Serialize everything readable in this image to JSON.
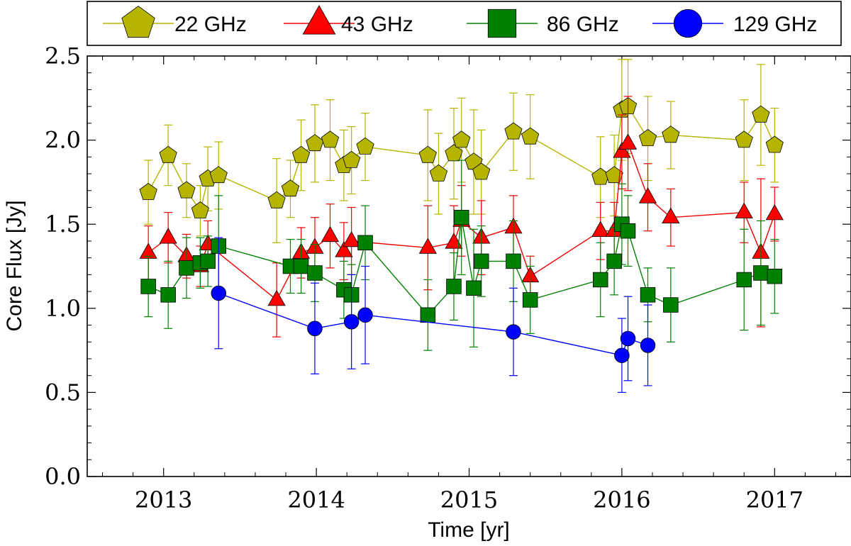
{
  "chart_data": {
    "type": "scatter",
    "xlabel": "Time [yr]",
    "ylabel": "Core Flux [Jy]",
    "xlim": [
      2012.5,
      2017.5
    ],
    "ylim": [
      0.0,
      2.5
    ],
    "xticks": [
      {
        "value": 2013,
        "label": "2013"
      },
      {
        "value": 2014,
        "label": "2014"
      },
      {
        "value": 2015,
        "label": "2015"
      },
      {
        "value": 2016,
        "label": "2016"
      },
      {
        "value": 2017,
        "label": "2017"
      }
    ],
    "yticks": [
      {
        "value": 0.0,
        "label": "0.0"
      },
      {
        "value": 0.5,
        "label": "0.5"
      },
      {
        "value": 1.0,
        "label": "1.0"
      },
      {
        "value": 1.5,
        "label": "1.5"
      },
      {
        "value": 2.0,
        "label": "2.0"
      },
      {
        "value": 2.5,
        "label": "2.5"
      }
    ],
    "legend_position": "top, above plot",
    "series": [
      {
        "name": "22 GHz",
        "marker": "pentagon",
        "line_color": "#b5b500",
        "marker_color": "#b5b500",
        "points": [
          {
            "x": 2012.9,
            "y": 1.69,
            "err": 0.19
          },
          {
            "x": 2013.03,
            "y": 1.91,
            "err": 0.18
          },
          {
            "x": 2013.15,
            "y": 1.7,
            "err": 0.16
          },
          {
            "x": 2013.24,
            "y": 1.58,
            "err": 0.15
          },
          {
            "x": 2013.29,
            "y": 1.77,
            "err": 0.19
          },
          {
            "x": 2013.36,
            "y": 1.79,
            "err": 0.2
          },
          {
            "x": 2013.74,
            "y": 1.64,
            "err": 0.25
          },
          {
            "x": 2013.83,
            "y": 1.71,
            "err": 0.17
          },
          {
            "x": 2013.9,
            "y": 1.91,
            "err": 0.21
          },
          {
            "x": 2013.99,
            "y": 1.98,
            "err": 0.23
          },
          {
            "x": 2014.09,
            "y": 2.0,
            "err": 0.24
          },
          {
            "x": 2014.18,
            "y": 1.85,
            "err": 0.21
          },
          {
            "x": 2014.23,
            "y": 1.88,
            "err": 0.2
          },
          {
            "x": 2014.32,
            "y": 1.96,
            "err": 0.2
          },
          {
            "x": 2014.73,
            "y": 1.91,
            "err": 0.27
          },
          {
            "x": 2014.8,
            "y": 1.8,
            "err": 0.24
          },
          {
            "x": 2014.9,
            "y": 1.92,
            "err": 0.27
          },
          {
            "x": 2014.95,
            "y": 2.0,
            "err": 0.25
          },
          {
            "x": 2015.03,
            "y": 1.87,
            "err": 0.31
          },
          {
            "x": 2015.08,
            "y": 1.81,
            "err": 0.25
          },
          {
            "x": 2015.29,
            "y": 2.05,
            "err": 0.23
          },
          {
            "x": 2015.4,
            "y": 2.02,
            "err": 0.25
          },
          {
            "x": 2015.86,
            "y": 1.78,
            "err": 0.24
          },
          {
            "x": 2015.95,
            "y": 1.79,
            "err": 0.24
          },
          {
            "x": 2016.0,
            "y": 2.18,
            "err": 0.3
          },
          {
            "x": 2016.04,
            "y": 2.2,
            "err": 0.28
          },
          {
            "x": 2016.17,
            "y": 2.01,
            "err": 0.25
          },
          {
            "x": 2016.32,
            "y": 2.03,
            "err": 0.2
          },
          {
            "x": 2016.8,
            "y": 2.0,
            "err": 0.24
          },
          {
            "x": 2016.91,
            "y": 2.15,
            "err": 0.3
          },
          {
            "x": 2017.0,
            "y": 1.97,
            "err": 0.22
          }
        ]
      },
      {
        "name": "43 GHz",
        "marker": "triangle",
        "line_color": "#ee0000",
        "marker_color": "#ff0000",
        "points": [
          {
            "x": 2012.9,
            "y": 1.33,
            "err": 0.16
          },
          {
            "x": 2013.03,
            "y": 1.42,
            "err": 0.15
          },
          {
            "x": 2013.15,
            "y": 1.31,
            "err": 0.13
          },
          {
            "x": 2013.24,
            "y": 1.25,
            "err": 0.12
          },
          {
            "x": 2013.29,
            "y": 1.38,
            "err": 0.14
          },
          {
            "x": 2013.74,
            "y": 1.05,
            "err": 0.22
          },
          {
            "x": 2013.9,
            "y": 1.33,
            "err": 0.15
          },
          {
            "x": 2013.99,
            "y": 1.36,
            "err": 0.18
          },
          {
            "x": 2014.09,
            "y": 1.43,
            "err": 0.19
          },
          {
            "x": 2014.18,
            "y": 1.34,
            "err": 0.17
          },
          {
            "x": 2014.23,
            "y": 1.4,
            "err": 0.2
          },
          {
            "x": 2014.73,
            "y": 1.36,
            "err": 0.25
          },
          {
            "x": 2014.9,
            "y": 1.39,
            "err": 0.22
          },
          {
            "x": 2014.95,
            "y": 1.52,
            "err": 0.21
          },
          {
            "x": 2015.08,
            "y": 1.42,
            "err": 0.22
          },
          {
            "x": 2015.29,
            "y": 1.48,
            "err": 0.19
          },
          {
            "x": 2015.4,
            "y": 1.19,
            "err": 0.12
          },
          {
            "x": 2015.86,
            "y": 1.46,
            "err": 0.17
          },
          {
            "x": 2015.95,
            "y": 1.46,
            "err": 0.17
          },
          {
            "x": 2016.0,
            "y": 1.93,
            "err": 0.22
          },
          {
            "x": 2016.04,
            "y": 1.98,
            "err": 0.28
          },
          {
            "x": 2016.17,
            "y": 1.66,
            "err": 0.2
          },
          {
            "x": 2016.32,
            "y": 1.54,
            "err": 0.17
          },
          {
            "x": 2016.8,
            "y": 1.57,
            "err": 0.18
          },
          {
            "x": 2016.91,
            "y": 1.33,
            "err": 0.44
          },
          {
            "x": 2017.0,
            "y": 1.56,
            "err": 0.16
          }
        ]
      },
      {
        "name": "86 GHz",
        "marker": "square",
        "line_color": "#008000",
        "marker_color": "#008000",
        "points": [
          {
            "x": 2012.9,
            "y": 1.13,
            "err": 0.18
          },
          {
            "x": 2013.03,
            "y": 1.08,
            "err": 0.2
          },
          {
            "x": 2013.15,
            "y": 1.24,
            "err": 0.18
          },
          {
            "x": 2013.24,
            "y": 1.27,
            "err": 0.15
          },
          {
            "x": 2013.29,
            "y": 1.28,
            "err": 0.15
          },
          {
            "x": 2013.36,
            "y": 1.37,
            "err": 0.3
          },
          {
            "x": 2013.83,
            "y": 1.25,
            "err": 0.16
          },
          {
            "x": 2013.9,
            "y": 1.25,
            "err": 0.16
          },
          {
            "x": 2013.99,
            "y": 1.21,
            "err": 0.17
          },
          {
            "x": 2014.18,
            "y": 1.11,
            "err": 0.17
          },
          {
            "x": 2014.23,
            "y": 1.08,
            "err": 0.18
          },
          {
            "x": 2014.32,
            "y": 1.39,
            "err": 0.22
          },
          {
            "x": 2014.73,
            "y": 0.96,
            "err": 0.21
          },
          {
            "x": 2014.9,
            "y": 1.13,
            "err": 0.2
          },
          {
            "x": 2014.95,
            "y": 1.54,
            "err": 0.34
          },
          {
            "x": 2015.03,
            "y": 1.12,
            "err": 0.35
          },
          {
            "x": 2015.08,
            "y": 1.28,
            "err": 0.21
          },
          {
            "x": 2015.29,
            "y": 1.28,
            "err": 0.24
          },
          {
            "x": 2015.4,
            "y": 1.05,
            "err": 0.2
          },
          {
            "x": 2015.86,
            "y": 1.17,
            "err": 0.22
          },
          {
            "x": 2015.95,
            "y": 1.28,
            "err": 0.2
          },
          {
            "x": 2016.0,
            "y": 1.5,
            "err": 0.24
          },
          {
            "x": 2016.04,
            "y": 1.46,
            "err": 0.21
          },
          {
            "x": 2016.17,
            "y": 1.08,
            "err": 0.16
          },
          {
            "x": 2016.32,
            "y": 1.02,
            "err": 0.22
          },
          {
            "x": 2016.8,
            "y": 1.17,
            "err": 0.3
          },
          {
            "x": 2016.91,
            "y": 1.21,
            "err": 0.31
          },
          {
            "x": 2017.0,
            "y": 1.19,
            "err": 0.22
          }
        ]
      },
      {
        "name": "129 GHz",
        "marker": "circle",
        "line_color": "#0000ff",
        "marker_color": "#0000ff",
        "points": [
          {
            "x": 2013.36,
            "y": 1.09,
            "err": 0.33
          },
          {
            "x": 2013.99,
            "y": 0.88,
            "err": 0.27
          },
          {
            "x": 2014.23,
            "y": 0.92,
            "err": 0.28
          },
          {
            "x": 2014.32,
            "y": 0.96,
            "err": 0.29
          },
          {
            "x": 2015.29,
            "y": 0.86,
            "err": 0.26
          },
          {
            "x": 2016.0,
            "y": 0.72,
            "err": 0.22
          },
          {
            "x": 2016.04,
            "y": 0.82,
            "err": 0.25
          },
          {
            "x": 2016.17,
            "y": 0.78,
            "err": 0.24
          }
        ]
      }
    ]
  }
}
